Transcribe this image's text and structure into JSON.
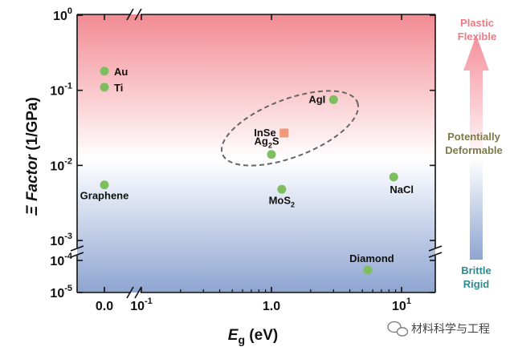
{
  "chart_data": {
    "type": "scatter",
    "xlabel": {
      "symbol": "E",
      "sub": "g",
      "rest": " (eV)"
    },
    "ylabel": {
      "symbol": "Ξ Factor",
      "rest": " (1/GPa)"
    },
    "x_scale": "log with broken axis (Eg = 0 shown separately)",
    "y_scale": "log with broken axis",
    "x_ticks": [
      {
        "label": "0.0",
        "value": 0
      },
      {
        "base": "10",
        "exp": "-1",
        "value": 0.1
      },
      {
        "label": "1.0",
        "value": 1
      },
      {
        "base": "10",
        "exp": "1",
        "value": 10
      }
    ],
    "y_ticks": [
      {
        "base": "10",
        "exp": "0",
        "value": 1
      },
      {
        "base": "10",
        "exp": "-1",
        "value": 0.1
      },
      {
        "base": "10",
        "exp": "-2",
        "value": 0.01
      },
      {
        "base": "10",
        "exp": "-3",
        "value": 0.001
      },
      {
        "base": "10",
        "exp": "-4",
        "value": 0.0001
      },
      {
        "base": "10",
        "exp": "-5",
        "value": 1e-05
      }
    ],
    "points": [
      {
        "name": "Au",
        "x": 0,
        "y": 0.18,
        "marker": "circle",
        "label_pos": "right"
      },
      {
        "name": "Ti",
        "x": 0,
        "y": 0.11,
        "marker": "circle",
        "label_pos": "right"
      },
      {
        "name": "Graphene",
        "x": 0,
        "y": 0.0055,
        "marker": "circle",
        "label_pos": "below"
      },
      {
        "name": "AgI",
        "x": 3.0,
        "y": 0.075,
        "marker": "circle",
        "label_pos": "left"
      },
      {
        "name": "InSe",
        "x": 1.25,
        "y": 0.027,
        "marker": "square",
        "label_pos": "left"
      },
      {
        "name": "Ag",
        "sub": "2",
        "rest": "S",
        "x": 1.0,
        "y": 0.014,
        "marker": "circle",
        "label_pos": "above-left"
      },
      {
        "name": "MoS",
        "sub": "2",
        "x": 1.2,
        "y": 0.0048,
        "marker": "circle",
        "label_pos": "below"
      },
      {
        "name": "NaCl",
        "x": 8.7,
        "y": 0.007,
        "marker": "circle",
        "label_pos": "below-right"
      },
      {
        "name": "Diamond",
        "x": 5.5,
        "y": 5e-05,
        "marker": "circle",
        "label_pos": "above-right"
      }
    ],
    "legend_arrow": {
      "top": [
        "Plastic",
        "Flexible"
      ],
      "middle": [
        "Potentially",
        "Deformable"
      ],
      "bottom": [
        "Brittle",
        "Rigid"
      ]
    },
    "grid": false,
    "legend": "vertical gradient arrow at right"
  },
  "watermark": {
    "text": "材料科学与工程"
  },
  "colors": {
    "top_region": "#f28b92",
    "bottom_region": "#8ea5d1",
    "circle_marker": "#7dbf5e",
    "square_marker": "#f2987a",
    "plastic_text": "#f07882",
    "deformable_text": "#7c7a48",
    "rigid_text": "#2e8c8c",
    "ellipse": "#666666"
  }
}
